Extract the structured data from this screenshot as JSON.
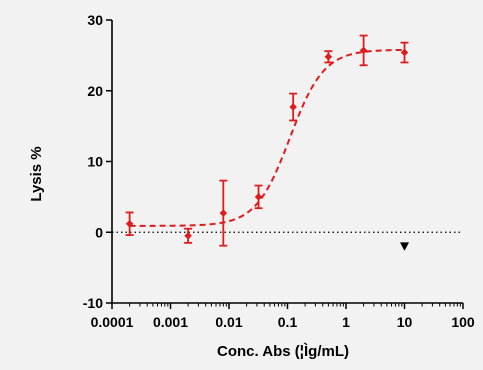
{
  "chart_data": {
    "type": "scatter",
    "xlabel": "Conc. Abs (¦Ìg/mL)",
    "ylabel": "Lysis %",
    "x_scale": "log",
    "xlim": [
      0.0001,
      100
    ],
    "ylim": [
      -10,
      30
    ],
    "x_ticks": [
      0.0001,
      0.001,
      0.01,
      0.1,
      1,
      10,
      100
    ],
    "x_tick_labels": [
      "0.0001",
      "0.001",
      "0.01",
      "0.1",
      "1",
      "10",
      "100"
    ],
    "y_ticks": [
      -10,
      0,
      10,
      20,
      30
    ],
    "y_tick_labels": [
      "-10",
      "0",
      "10",
      "20",
      "30"
    ],
    "grid": false,
    "colors": {
      "series": "#e01b1b",
      "background": "#f2f2f2",
      "axis": "#000000"
    },
    "series": [
      {
        "style": "points with error bars and dashed fit curve",
        "points": [
          {
            "x": 0.0002,
            "y": 1.2,
            "err": 1.6
          },
          {
            "x": 0.002,
            "y": -0.5,
            "err": 1.0
          },
          {
            "x": 0.008,
            "y": 2.7,
            "err": 4.6
          },
          {
            "x": 0.032,
            "y": 5.0,
            "err": 1.6
          },
          {
            "x": 0.125,
            "y": 17.7,
            "err": 1.9
          },
          {
            "x": 0.5,
            "y": 24.8,
            "err": 0.8
          },
          {
            "x": 2,
            "y": 25.7,
            "err": 2.1
          },
          {
            "x": 10,
            "y": 25.4,
            "err": 1.4
          }
        ],
        "fit": {
          "model": "4PL",
          "bottom": 0.9,
          "top": 25.8,
          "ec50": 0.11,
          "hill": 1.5
        }
      }
    ],
    "baseline": {
      "y": 0,
      "style": "dotted"
    },
    "annotations": [
      {
        "shape": "down-triangle",
        "x": 10,
        "y": -2
      }
    ]
  }
}
